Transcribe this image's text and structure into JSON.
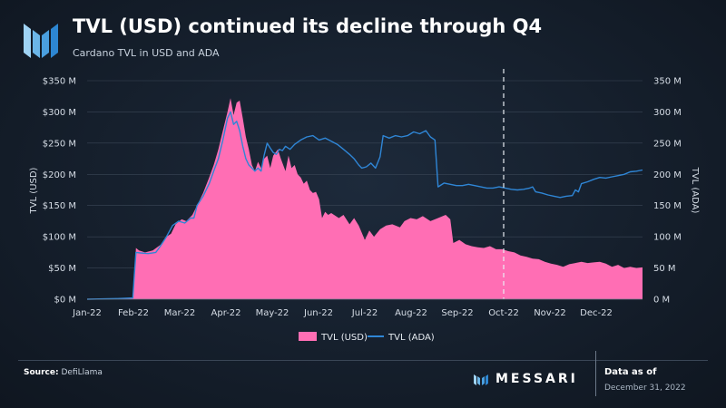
{
  "header": {
    "title": "TVL (USD) continued its decline through Q4",
    "subtitle": "Cardano TVL in USD and ADA"
  },
  "footer": {
    "source_label": "Source:",
    "source_value": "DefiLlama",
    "brand": "MESSARI",
    "as_of_label": "Data as of",
    "as_of_date": "December 31, 2022"
  },
  "colors": {
    "area": "#ff6eb4",
    "line": "#2f86d6",
    "grid": "#3a4656",
    "marker": "#e8edf2"
  },
  "chart_data": {
    "type": "area+line",
    "title": "TVL (USD) continued its decline through Q4",
    "subtitle": "Cardano TVL in USD and ADA",
    "xlabel": "",
    "ylabel_left": "TVL (USD)",
    "ylabel_right": "TVL (ADA)",
    "ylim_left": [
      0,
      350
    ],
    "ylim_right": [
      0,
      350
    ],
    "left_ticks": [
      "$0 M",
      "$50 M",
      "$100 M",
      "$150 M",
      "$200 M",
      "$250 M",
      "$300 M",
      "$350 M"
    ],
    "right_ticks": [
      "0 M",
      "50 M",
      "100 M",
      "150 M",
      "200 M",
      "250 M",
      "300 M",
      "350 M"
    ],
    "x_labels": [
      "Jan-22",
      "Feb-22",
      "Mar-22",
      "Apr-22",
      "May-22",
      "Jun-22",
      "Jul-22",
      "Aug-22",
      "Sep-22",
      "Oct-22",
      "Nov-22",
      "Dec-22"
    ],
    "x_domain_days": [
      0,
      364
    ],
    "vertical_marker_day": 273,
    "legend_position": "bottom-center",
    "series": [
      {
        "name": "TVL (USD)",
        "kind": "area",
        "unit": "USD M",
        "points": [
          [
            0,
            0
          ],
          [
            20,
            1
          ],
          [
            30,
            2
          ],
          [
            31,
            35
          ],
          [
            32,
            82
          ],
          [
            34,
            78
          ],
          [
            38,
            75
          ],
          [
            43,
            78
          ],
          [
            48,
            87
          ],
          [
            52,
            100
          ],
          [
            55,
            105
          ],
          [
            58,
            120
          ],
          [
            62,
            128
          ],
          [
            65,
            125
          ],
          [
            69,
            135
          ],
          [
            72,
            150
          ],
          [
            76,
            170
          ],
          [
            80,
            195
          ],
          [
            83,
            215
          ],
          [
            86,
            240
          ],
          [
            89,
            270
          ],
          [
            92,
            300
          ],
          [
            94,
            322
          ],
          [
            96,
            295
          ],
          [
            98,
            315
          ],
          [
            100,
            318
          ],
          [
            102,
            290
          ],
          [
            104,
            260
          ],
          [
            106,
            240
          ],
          [
            108,
            215
          ],
          [
            110,
            205
          ],
          [
            112,
            220
          ],
          [
            114,
            210
          ],
          [
            116,
            225
          ],
          [
            118,
            230
          ],
          [
            120,
            210
          ],
          [
            122,
            230
          ],
          [
            125,
            240
          ],
          [
            127,
            225
          ],
          [
            130,
            205
          ],
          [
            132,
            230
          ],
          [
            134,
            210
          ],
          [
            136,
            215
          ],
          [
            138,
            200
          ],
          [
            140,
            195
          ],
          [
            142,
            185
          ],
          [
            144,
            190
          ],
          [
            146,
            175
          ],
          [
            148,
            170
          ],
          [
            150,
            172
          ],
          [
            152,
            160
          ],
          [
            154,
            130
          ],
          [
            156,
            140
          ],
          [
            158,
            135
          ],
          [
            160,
            138
          ],
          [
            165,
            130
          ],
          [
            168,
            135
          ],
          [
            172,
            120
          ],
          [
            175,
            130
          ],
          [
            178,
            118
          ],
          [
            182,
            95
          ],
          [
            185,
            110
          ],
          [
            188,
            100
          ],
          [
            192,
            112
          ],
          [
            196,
            118
          ],
          [
            200,
            120
          ],
          [
            205,
            115
          ],
          [
            208,
            125
          ],
          [
            212,
            130
          ],
          [
            216,
            128
          ],
          [
            220,
            133
          ],
          [
            225,
            125
          ],
          [
            230,
            130
          ],
          [
            235,
            135
          ],
          [
            238,
            128
          ],
          [
            240,
            90
          ],
          [
            244,
            95
          ],
          [
            248,
            88
          ],
          [
            252,
            85
          ],
          [
            256,
            83
          ],
          [
            260,
            82
          ],
          [
            264,
            85
          ],
          [
            268,
            80
          ],
          [
            272,
            80
          ],
          [
            276,
            77
          ],
          [
            280,
            75
          ],
          [
            284,
            70
          ],
          [
            288,
            68
          ],
          [
            292,
            65
          ],
          [
            296,
            64
          ],
          [
            300,
            60
          ],
          [
            304,
            57
          ],
          [
            308,
            55
          ],
          [
            312,
            52
          ],
          [
            316,
            56
          ],
          [
            320,
            58
          ],
          [
            324,
            60
          ],
          [
            328,
            58
          ],
          [
            332,
            59
          ],
          [
            336,
            60
          ],
          [
            340,
            57
          ],
          [
            344,
            52
          ],
          [
            348,
            55
          ],
          [
            352,
            50
          ],
          [
            356,
            52
          ],
          [
            360,
            50
          ],
          [
            364,
            51
          ]
        ]
      },
      {
        "name": "TVL (ADA)",
        "kind": "line",
        "unit": "ADA M",
        "points": [
          [
            0,
            0
          ],
          [
            20,
            1
          ],
          [
            30,
            2
          ],
          [
            31,
            40
          ],
          [
            32,
            75
          ],
          [
            35,
            74
          ],
          [
            40,
            73
          ],
          [
            45,
            75
          ],
          [
            48,
            85
          ],
          [
            52,
            100
          ],
          [
            56,
            118
          ],
          [
            60,
            125
          ],
          [
            64,
            122
          ],
          [
            68,
            130
          ],
          [
            70,
            130
          ],
          [
            72,
            150
          ],
          [
            76,
            165
          ],
          [
            80,
            185
          ],
          [
            83,
            205
          ],
          [
            86,
            225
          ],
          [
            89,
            255
          ],
          [
            92,
            290
          ],
          [
            94,
            300
          ],
          [
            96,
            280
          ],
          [
            98,
            285
          ],
          [
            100,
            270
          ],
          [
            102,
            245
          ],
          [
            104,
            225
          ],
          [
            106,
            215
          ],
          [
            108,
            210
          ],
          [
            110,
            205
          ],
          [
            112,
            210
          ],
          [
            114,
            205
          ],
          [
            116,
            230
          ],
          [
            118,
            250
          ],
          [
            120,
            242
          ],
          [
            122,
            235
          ],
          [
            124,
            232
          ],
          [
            126,
            240
          ],
          [
            128,
            238
          ],
          [
            130,
            245
          ],
          [
            133,
            240
          ],
          [
            136,
            248
          ],
          [
            140,
            255
          ],
          [
            144,
            260
          ],
          [
            148,
            262
          ],
          [
            152,
            255
          ],
          [
            156,
            258
          ],
          [
            160,
            253
          ],
          [
            164,
            248
          ],
          [
            168,
            240
          ],
          [
            172,
            232
          ],
          [
            175,
            225
          ],
          [
            178,
            215
          ],
          [
            180,
            210
          ],
          [
            183,
            212
          ],
          [
            186,
            218
          ],
          [
            189,
            210
          ],
          [
            192,
            228
          ],
          [
            194,
            262
          ],
          [
            198,
            258
          ],
          [
            202,
            262
          ],
          [
            206,
            260
          ],
          [
            210,
            262
          ],
          [
            214,
            268
          ],
          [
            218,
            265
          ],
          [
            222,
            270
          ],
          [
            225,
            260
          ],
          [
            228,
            255
          ],
          [
            230,
            180
          ],
          [
            234,
            186
          ],
          [
            238,
            184
          ],
          [
            242,
            182
          ],
          [
            246,
            182
          ],
          [
            250,
            184
          ],
          [
            254,
            182
          ],
          [
            258,
            180
          ],
          [
            262,
            178
          ],
          [
            266,
            178
          ],
          [
            270,
            180
          ],
          [
            274,
            178
          ],
          [
            278,
            176
          ],
          [
            282,
            175
          ],
          [
            286,
            176
          ],
          [
            290,
            178
          ],
          [
            292,
            180
          ],
          [
            294,
            172
          ],
          [
            298,
            170
          ],
          [
            302,
            167
          ],
          [
            306,
            165
          ],
          [
            310,
            163
          ],
          [
            314,
            165
          ],
          [
            318,
            166
          ],
          [
            320,
            175
          ],
          [
            322,
            172
          ],
          [
            324,
            185
          ],
          [
            328,
            188
          ],
          [
            332,
            192
          ],
          [
            336,
            195
          ],
          [
            340,
            194
          ],
          [
            344,
            196
          ],
          [
            348,
            198
          ],
          [
            352,
            200
          ],
          [
            356,
            204
          ],
          [
            360,
            205
          ],
          [
            364,
            207
          ]
        ]
      }
    ]
  }
}
